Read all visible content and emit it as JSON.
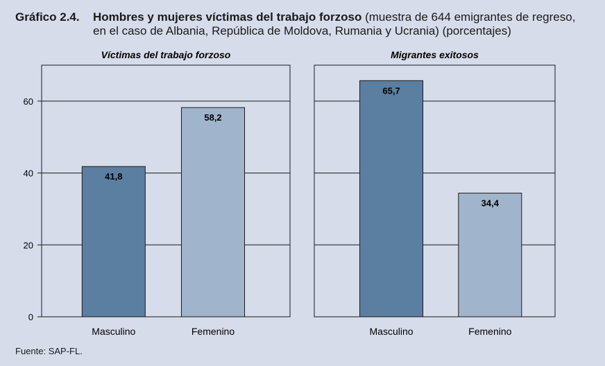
{
  "title": {
    "number": "Gráfico 2.4.",
    "bold": "Hombres y mujeres víctimas del trabajo forzoso",
    "rest_line1": " (muestra de 644 emigrantes de regreso,",
    "line2": "en el caso de Albania, República de Moldova, Rumania y Ucrania) (porcentajes)"
  },
  "source": "Fuente: SAP-FL.",
  "colors": {
    "background": "#d6dcea",
    "masculino": "#5b7fa0",
    "femenino": "#a0b5cc"
  },
  "chart_data": [
    {
      "type": "bar",
      "title": "Víctimas del trabajo forzoso",
      "categories": [
        "Masculino",
        "Femenino"
      ],
      "values": [
        41.8,
        58.2
      ],
      "value_labels": [
        "41,8",
        "58,2"
      ],
      "ylim": [
        0,
        70
      ],
      "yticks": [
        0,
        20,
        40,
        60
      ],
      "grid": true
    },
    {
      "type": "bar",
      "title": "Migrantes exitosos",
      "categories": [
        "Masculino",
        "Femenino"
      ],
      "values": [
        65.7,
        34.4
      ],
      "value_labels": [
        "65,7",
        "34,4"
      ],
      "ylim": [
        0,
        70
      ],
      "yticks": [
        0,
        20,
        40,
        60
      ],
      "grid": true
    }
  ]
}
